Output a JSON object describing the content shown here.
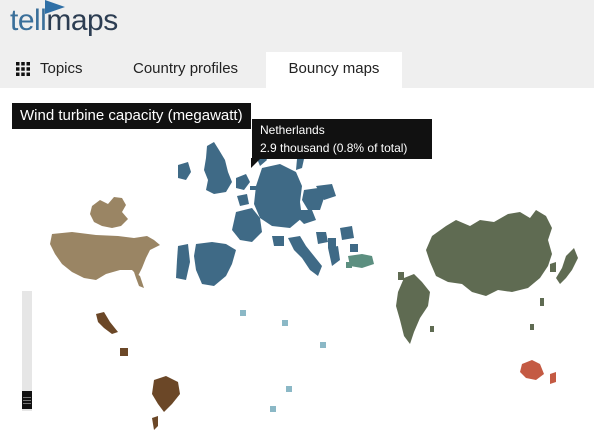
{
  "app": {
    "logo_tell": "tell",
    "logo_maps": "maps"
  },
  "tabs": [
    {
      "label": "Topics",
      "icon": "grid-icon"
    },
    {
      "label": "Country profiles"
    },
    {
      "label": "Bouncy maps",
      "active": true
    }
  ],
  "map": {
    "title": "Wind turbine capacity (megawatt)",
    "tooltip": {
      "country": "Netherlands",
      "value": "2.9 thousand (0.8% of total)"
    },
    "colors": {
      "north_america": "#9a8564",
      "europe": "#3f6a86",
      "turkey_cyprus": "#5c8f80",
      "asia": "#5f6b52",
      "latin_america": "#6b4727",
      "australia": "#c45a43",
      "islands": "#8bb8c6"
    }
  }
}
